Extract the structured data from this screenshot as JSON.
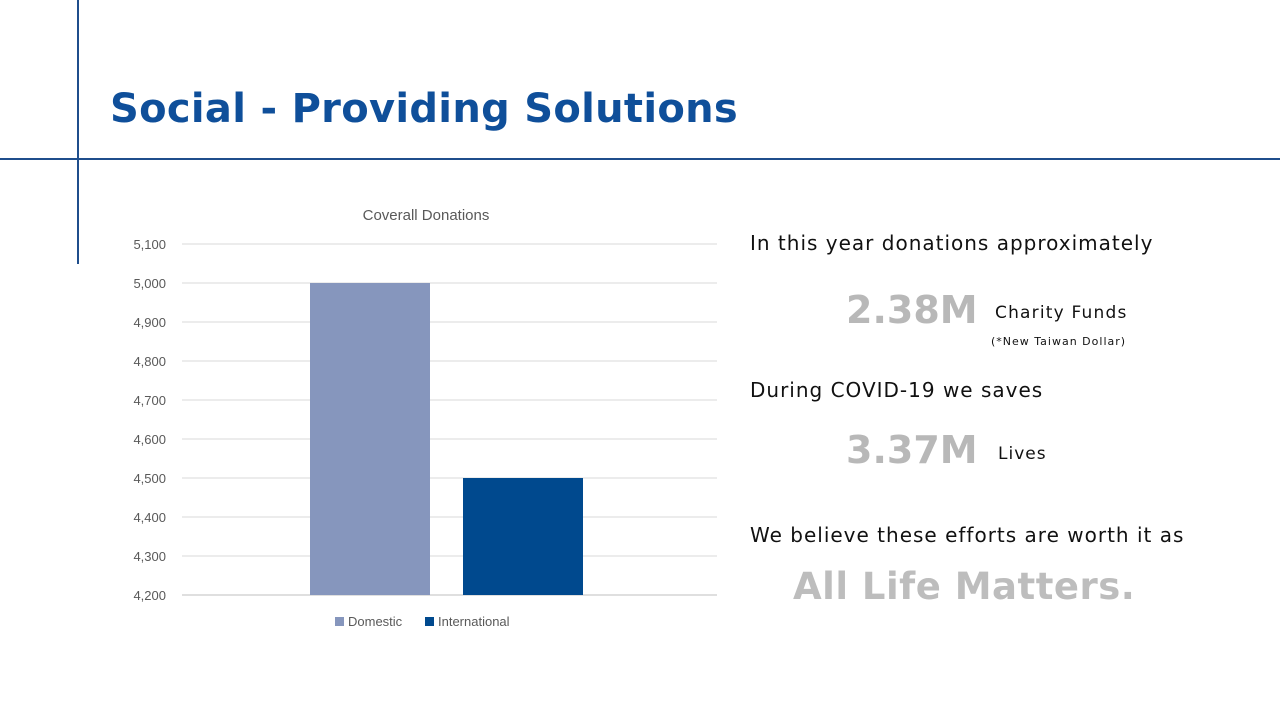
{
  "slide": {
    "title": "Social - Providing Solutions"
  },
  "stats": {
    "donations_intro": "In this year donations approximately",
    "donations_value": "2.38M",
    "donations_unit": "Charity Funds",
    "donations_note": "(*New Taiwan Dollar)",
    "covid_intro": "During COVID-19 we saves",
    "lives_value": "3.37M",
    "lives_unit": "Lives",
    "belief_text": "We believe these efforts are worth it as",
    "slogan": "All Life Matters."
  },
  "colors": {
    "accent_line": "#1f4e8c",
    "title": "#0f4f9a",
    "domestic": "#8696bd",
    "international": "#00498e",
    "highlight_gray": "#b8b8b8"
  },
  "chart_data": {
    "type": "bar",
    "title": "Coverall Donations",
    "categories": [
      ""
    ],
    "series": [
      {
        "name": "Domestic",
        "values": [
          5000
        ]
      },
      {
        "name": "International",
        "values": [
          4500
        ]
      }
    ],
    "ylim": [
      4200,
      5100
    ],
    "yticks": [
      4200,
      4300,
      4400,
      4500,
      4600,
      4700,
      4800,
      4900,
      5000,
      5100
    ],
    "ytick_labels": [
      "4,200",
      "4,300",
      "4,400",
      "4,500",
      "4,600",
      "4,700",
      "4,800",
      "4,900",
      "5,000",
      "5,100"
    ],
    "grid": true,
    "legend": "bottom"
  }
}
